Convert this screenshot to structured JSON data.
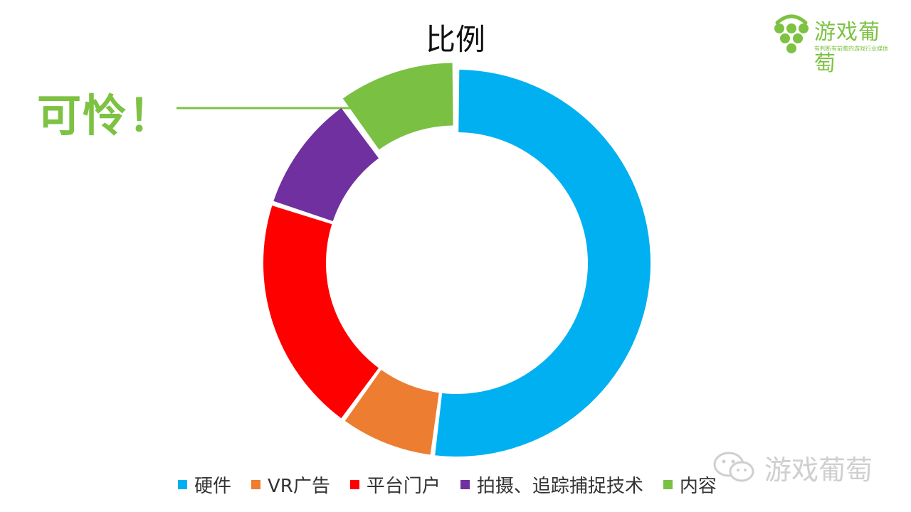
{
  "chart_data": {
    "type": "donut",
    "title": "比例",
    "categories": [
      "硬件",
      "VR广告",
      "平台门户",
      "拍摄、追踪捕捉技术",
      "内容"
    ],
    "values": [
      52,
      8,
      20,
      10,
      10
    ],
    "unit": "%",
    "colors": [
      "#00b0f0",
      "#ed7d31",
      "#ff0000",
      "#7030a0",
      "#7ac143"
    ],
    "legend_position": "bottom",
    "exploded_slice": "内容"
  },
  "annotation": {
    "text": "可怜！",
    "color": "#7dc242"
  },
  "logo": {
    "name": "游戏葡萄",
    "tagline": "有判断有前瞻的游戏行业媒体",
    "color": "#7dc242"
  },
  "watermark": {
    "text": "游戏葡萄",
    "icon": "wechat-icon"
  }
}
